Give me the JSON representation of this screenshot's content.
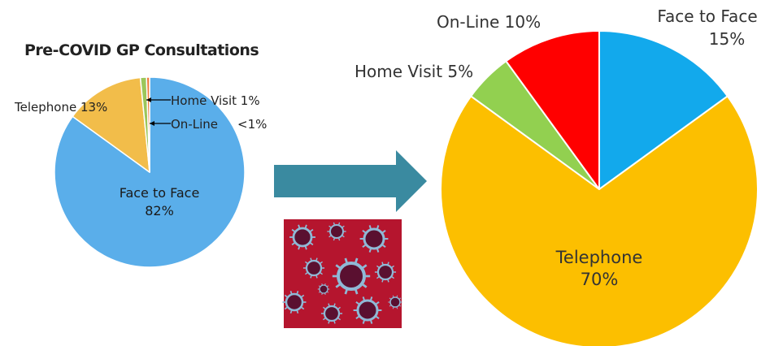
{
  "chart_data": [
    {
      "type": "pie",
      "title": "Pre-COVID GP Consultations",
      "slices": [
        {
          "label": "Face to Face",
          "value_label": "82%",
          "value": 82,
          "color": "#5aaeea"
        },
        {
          "label": "Telephone",
          "value_label": "13%",
          "value": 13,
          "color": "#f2bd4a"
        },
        {
          "label": "Home Visit",
          "value_label": "1%",
          "value": 1,
          "color": "#9cc65a"
        },
        {
          "label": "On-Line",
          "value_label": "<1%",
          "value": 0.5,
          "color": "#ef7b3a"
        }
      ],
      "labels": {
        "face": "Face to Face",
        "face_pct": "82%",
        "telephone": "Telephone 13%",
        "home": "Home Visit 1%",
        "online": "On-Line",
        "online_pct": "<1%"
      }
    },
    {
      "type": "pie",
      "title": "",
      "slices": [
        {
          "label": "Face to Face",
          "value_label": "15%",
          "value": 15,
          "color": "#12a9ec"
        },
        {
          "label": "Telephone",
          "value_label": "70%",
          "value": 70,
          "color": "#fcbf00"
        },
        {
          "label": "Home Visit",
          "value_label": "5%",
          "value": 5,
          "color": "#92d050"
        },
        {
          "label": "On-Line",
          "value_label": "10%",
          "value": 10,
          "color": "#ff0000"
        }
      ],
      "labels": {
        "face": "Face to Face",
        "face_pct": "15%",
        "telephone": "Telephone",
        "telephone_pct": "70%",
        "home": "Home Visit 5%",
        "online": "On-Line 10%"
      }
    }
  ],
  "arrow": {
    "color": "#3a8aa0"
  },
  "virus_image": {
    "icon": "coronavirus-image",
    "bg_color": "#b5152e",
    "virus_color": "#8fb9d6"
  }
}
